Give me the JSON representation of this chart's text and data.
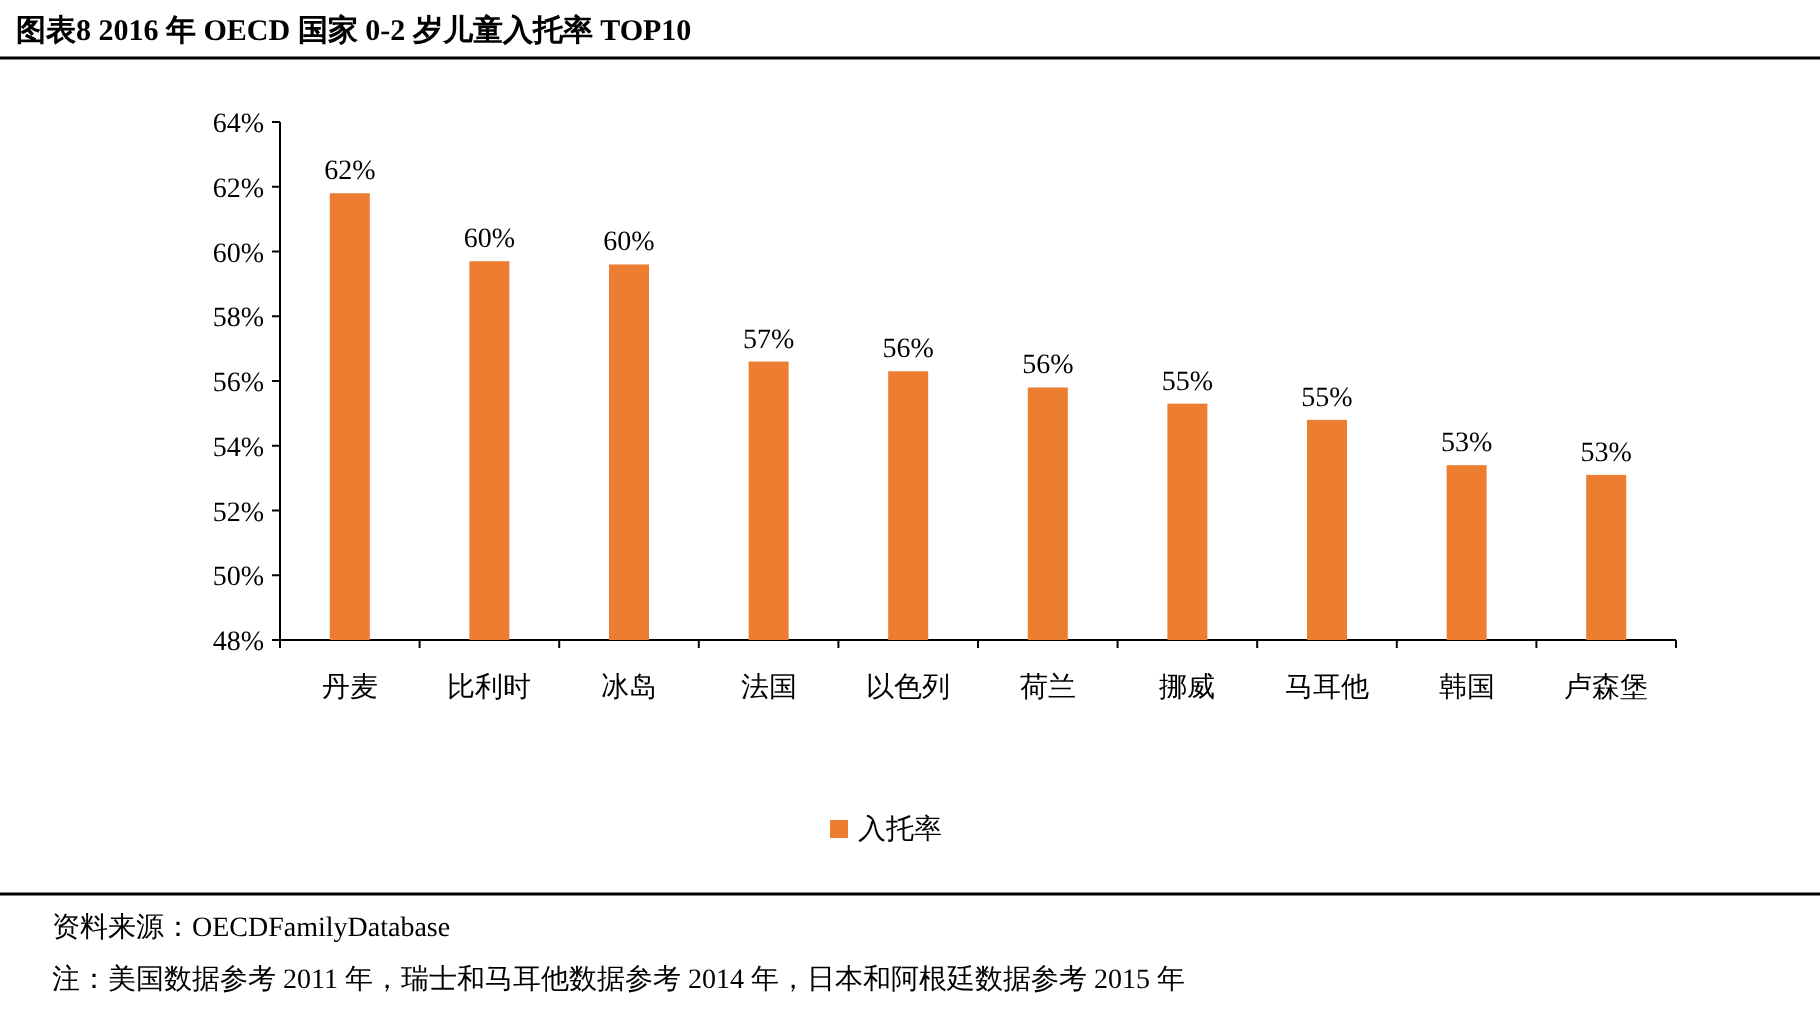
{
  "chart_data": {
    "type": "bar",
    "title": "图表8 2016 年 OECD 国家 0-2 岁儿童入托率 TOP10",
    "categories": [
      "丹麦",
      "比利时",
      "冰岛",
      "法国",
      "以色列",
      "荷兰",
      "挪威",
      "马耳他",
      "韩国",
      "卢森堡"
    ],
    "series": [
      {
        "name": "入托率",
        "color": "#ed7d31",
        "values": [
          61.8,
          59.7,
          59.6,
          56.6,
          56.3,
          55.8,
          55.3,
          54.8,
          53.4,
          53.1
        ],
        "value_labels": [
          "62%",
          "60%",
          "60%",
          "57%",
          "56%",
          "56%",
          "55%",
          "55%",
          "53%",
          "53%"
        ]
      }
    ],
    "ylim": [
      48,
      64
    ],
    "yticks": [
      {
        "value": 48,
        "label": "48%"
      },
      {
        "value": 50,
        "label": "50%"
      },
      {
        "value": 52,
        "label": "52%"
      },
      {
        "value": 54,
        "label": "54%"
      },
      {
        "value": 56,
        "label": "56%"
      },
      {
        "value": 58,
        "label": "58%"
      },
      {
        "value": 60,
        "label": "60%"
      },
      {
        "value": 62,
        "label": "62%"
      },
      {
        "value": 64,
        "label": "64%"
      }
    ],
    "legend": "bottom",
    "annotations": [
      "资料来源：OECDFamilyDatabase",
      "注：美国数据参考 2011 年，瑞士和马耳他数据参考 2014 年，日本和阿根廷数据参考 2015 年"
    ]
  }
}
